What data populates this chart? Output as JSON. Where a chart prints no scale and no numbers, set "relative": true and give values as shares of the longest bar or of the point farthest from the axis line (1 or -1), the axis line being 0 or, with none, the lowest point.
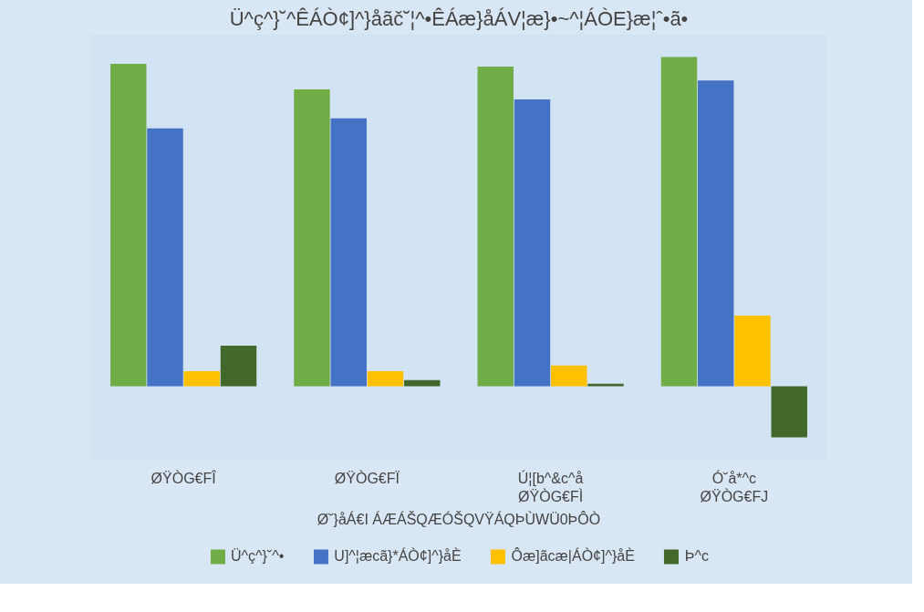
{
  "chart_data": {
    "type": "bar",
    "relative": true,
    "title": "Ü^ç^}˘^ÊÁÒ¢]^}åãč˘¦^•ÊÁæ}åÁV¦æ}•~^¦ÁÒE}æ¦ˆ•ã•",
    "xlabel": "Ø˘}åÁ€I ÁÆÁŠQÆÓŠQVŸÁQÞÙWÜ0ÞÔÒ",
    "categories": [
      "ØŸÒG€FÎ",
      "ØŸÒG€FÏ",
      "Ú¦[b^&c^å\nØŸÒG€FÌ",
      "Ó˘å*^c\nØŸÒG€FJ"
    ],
    "series": [
      {
        "name": "Ü^ç^}˘^•",
        "color": "#70ad47",
        "values": [
          0.979,
          0.902,
          0.971,
          1.0
        ]
      },
      {
        "name": "U]^¦æcã}*ÁÒ¢]^}åÈ",
        "color": "#4472c4",
        "values": [
          0.783,
          0.814,
          0.871,
          0.929
        ]
      },
      {
        "name": "Ôæ]ãcæ|ÁÒ¢]^}åÈ",
        "color": "#ffc000",
        "values": [
          0.046,
          0.046,
          0.063,
          0.215
        ]
      },
      {
        "name": "Þ^c",
        "color": "#43682b",
        "values": [
          0.123,
          0.019,
          0.008,
          -0.155
        ]
      }
    ],
    "legend": "bottom"
  }
}
